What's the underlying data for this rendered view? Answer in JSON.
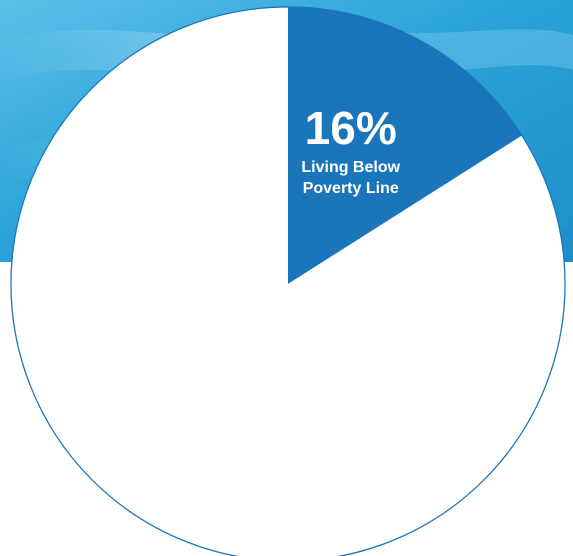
{
  "chart_data": {
    "type": "pie",
    "slices": [
      {
        "label_lines": [
          "Living Below",
          "Poverty Line"
        ],
        "value": 16,
        "value_label": "16%",
        "color": "#1b75bb"
      },
      {
        "label_lines": [],
        "value": 84,
        "value_label": "",
        "color": "#ffffff"
      }
    ],
    "start_angle_deg": 0,
    "direction": "clockwise",
    "edge_color": "#1b75bb"
  },
  "theme": {
    "background_top": "#2aa3d8",
    "background_mid": "#1e8ec9",
    "background_light": "#5cc0ea",
    "label_color": "#ffffff"
  }
}
